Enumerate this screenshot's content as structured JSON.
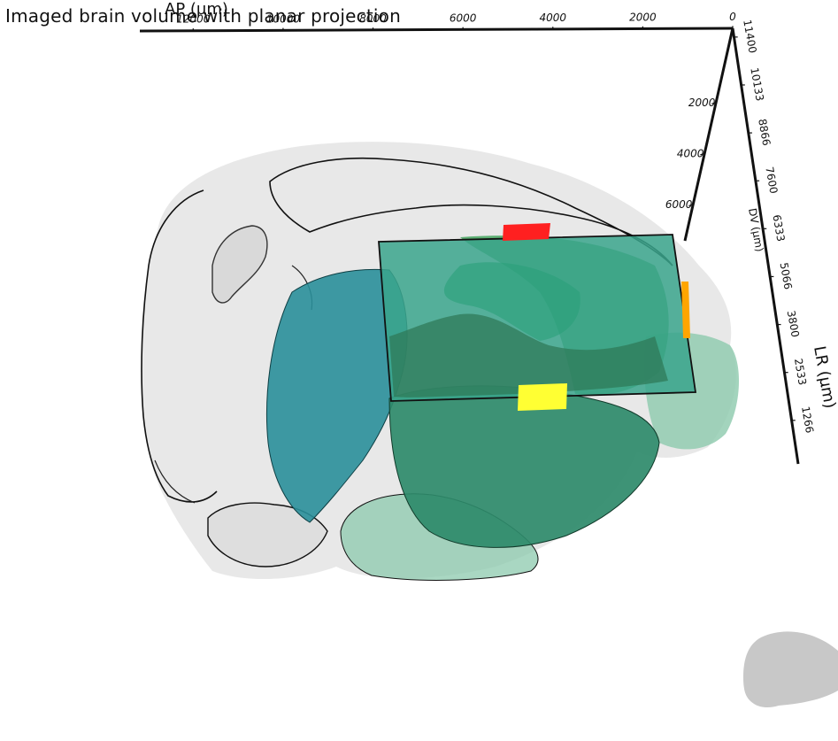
{
  "title": "Imaged brain volume with planar projection",
  "axes": {
    "ap": {
      "label": "AP (µm)",
      "ticks": [
        "12000",
        "10000",
        "8000",
        "6000",
        "4000",
        "2000",
        "0"
      ]
    },
    "dv": {
      "label": "DV (µm)",
      "ticks": [
        "2000",
        "4000",
        "6000"
      ]
    },
    "lr": {
      "label": "LR (µm)",
      "ticks": [
        "11400",
        "10133",
        "8866",
        "7600",
        "6333",
        "5066",
        "3800",
        "2533",
        "1266"
      ]
    }
  },
  "colors": {
    "brain_shell": "#e6e6e6",
    "outline": "#111111",
    "region_teal": "#2a8f9a",
    "region_green": "#2e9a66",
    "region_light": "#8cc9ad",
    "plane_fill": "#3aa58c",
    "marker_red": "#ff2020",
    "marker_yellow": "#ffff33",
    "marker_orange": "#ffa500",
    "orientation_icon": "#c8c8c8"
  },
  "icons": {
    "orientation": "brain-silhouette-icon"
  }
}
